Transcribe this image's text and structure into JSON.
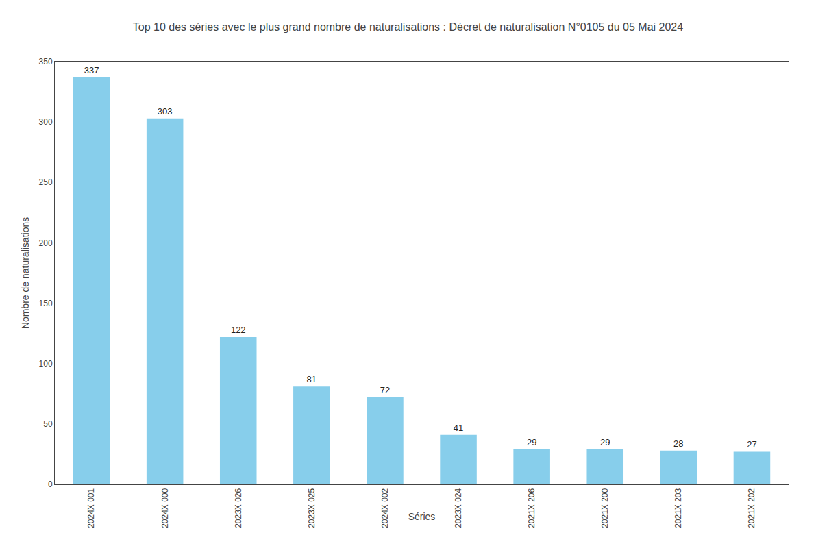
{
  "chart_data": {
    "type": "bar",
    "title": "Top 10 des séries avec le plus grand nombre de naturalisations : Décret de naturalisation N°0105 du 05 Mai 2024",
    "xlabel": "Séries",
    "ylabel": "Nombre de naturalisations",
    "categories": [
      "2024X 001",
      "2024X 000",
      "2023X 026",
      "2023X 025",
      "2024X 002",
      "2023X 024",
      "2021X 206",
      "2021X 200",
      "2021X 203",
      "2021X 202"
    ],
    "values": [
      337,
      303,
      122,
      81,
      72,
      41,
      29,
      29,
      28,
      27
    ],
    "color": "#87CEEB",
    "ylim": [
      0,
      350
    ],
    "yticks": [
      0,
      50,
      100,
      150,
      200,
      250,
      300,
      350
    ],
    "grid": false,
    "data_labels": true
  }
}
